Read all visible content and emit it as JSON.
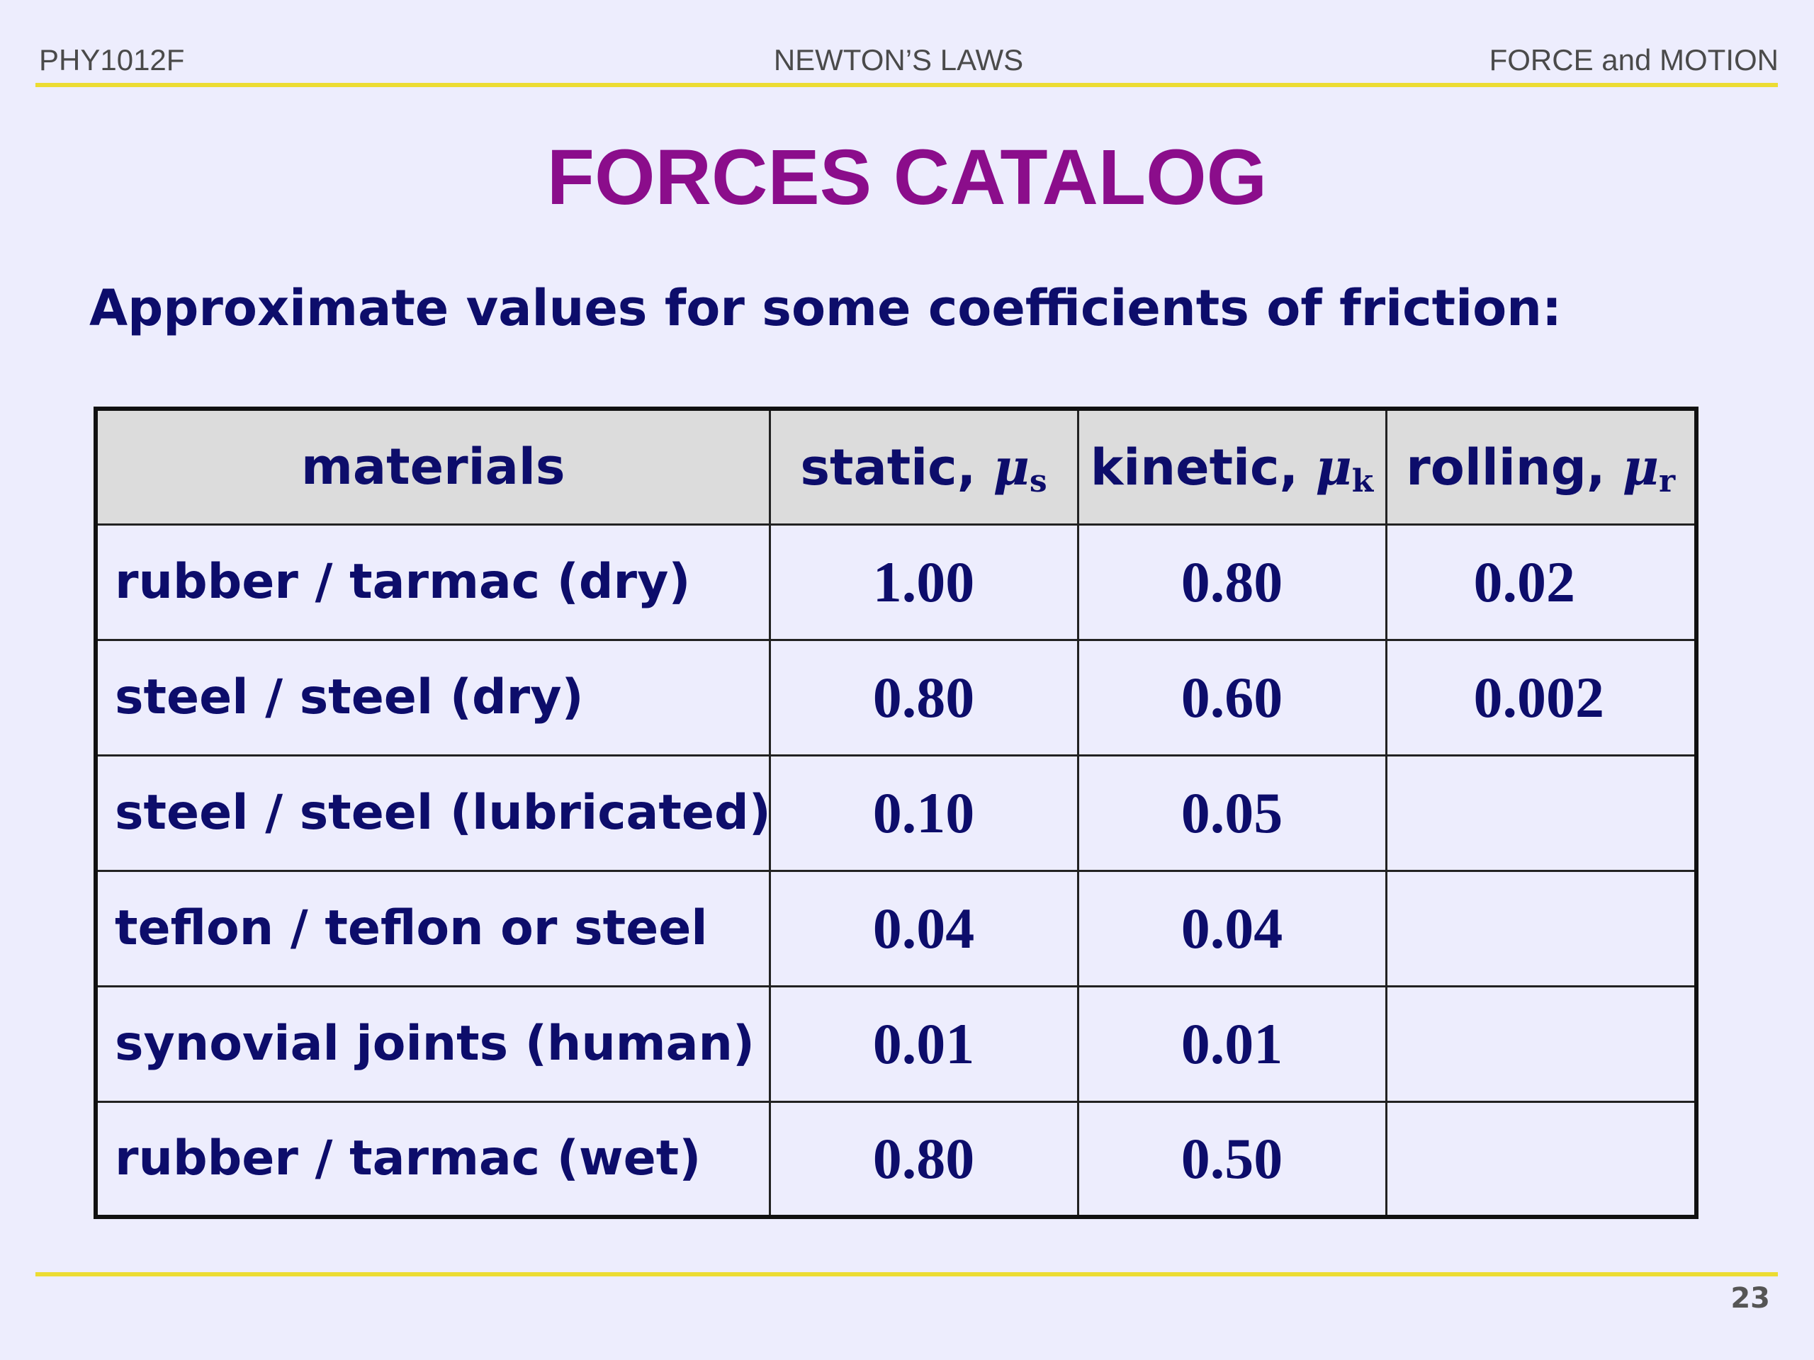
{
  "header": {
    "left": "PHY1012F",
    "center": "NEWTON’S LAWS",
    "right": "FORCE and MOTION"
  },
  "title": "FORCES CATALOG",
  "subtitle": "Approximate values for some coefficients of friction:",
  "table": {
    "columns": [
      {
        "label": "materials"
      },
      {
        "label": "static, ",
        "mu": "μ",
        "sub": "s"
      },
      {
        "label": "kinetic, ",
        "mu": "μ",
        "sub": "k"
      },
      {
        "label": "rolling, ",
        "mu": "μ",
        "sub": "r"
      }
    ],
    "rows": [
      {
        "material": "rubber / tarmac (dry)",
        "static": "1.00",
        "kinetic": "0.80",
        "rolling": "0.02"
      },
      {
        "material": "steel / steel (dry)",
        "static": "0.80",
        "kinetic": "0.60",
        "rolling": "0.002"
      },
      {
        "material": "steel / steel (lubricated)",
        "static": "0.10",
        "kinetic": "0.05",
        "rolling": ""
      },
      {
        "material": "teflon / teflon or steel",
        "static": "0.04",
        "kinetic": "0.04",
        "rolling": ""
      },
      {
        "material": "synovial joints (human)",
        "static": "0.01",
        "kinetic": "0.01",
        "rolling": ""
      },
      {
        "material": "rubber / tarmac (wet)",
        "static": "0.80",
        "kinetic": "0.50",
        "rolling": ""
      }
    ]
  },
  "page_number": "23",
  "colors": {
    "background": "#ededfd",
    "title": "#8b0d8b",
    "text": "#0d0d6b",
    "rule": "#ecdc32",
    "table_header_bg": "#dcdcdc"
  }
}
